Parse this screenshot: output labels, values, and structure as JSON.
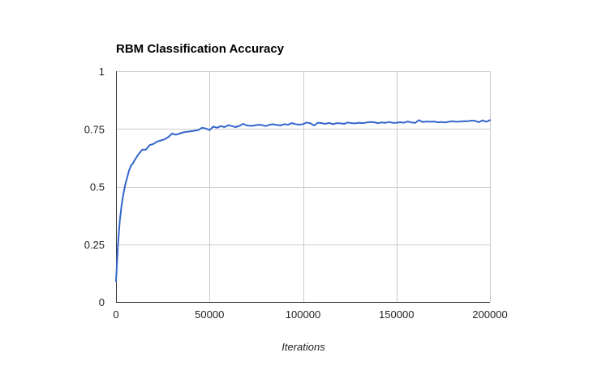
{
  "chart_data": {
    "type": "line",
    "title": "RBM Classification Accuracy",
    "xlabel": "Iterations",
    "ylabel": "",
    "xlim": [
      0,
      200000
    ],
    "ylim": [
      0,
      1
    ],
    "x_ticks": [
      0,
      50000,
      100000,
      150000,
      200000
    ],
    "y_ticks": [
      0,
      0.25,
      0.5,
      0.75,
      1
    ],
    "x_tick_labels": [
      "0",
      "50000",
      "100000",
      "150000",
      "200000"
    ],
    "y_tick_labels": [
      "0",
      "0.25",
      "0.5",
      "0.75",
      "1"
    ],
    "grid": true,
    "legend": "none",
    "series": [
      {
        "color": "#3366cc",
        "x": [
          0,
          1000,
          2000,
          3000,
          4000,
          5000,
          6000,
          7000,
          8000,
          9000,
          10000,
          12000,
          14000,
          16000,
          18000,
          20000,
          22000,
          24000,
          26000,
          28000,
          30000,
          32000,
          34000,
          36000,
          38000,
          40000,
          42000,
          44000,
          46000,
          48000,
          50000,
          52000,
          54000,
          56000,
          58000,
          60000,
          62000,
          64000,
          66000,
          68000,
          70000,
          72000,
          74000,
          76000,
          78000,
          80000,
          82000,
          84000,
          86000,
          88000,
          90000,
          92000,
          94000,
          96000,
          98000,
          100000,
          102000,
          104000,
          106000,
          108000,
          110000,
          112000,
          114000,
          116000,
          118000,
          120000,
          122000,
          124000,
          126000,
          128000,
          130000,
          132000,
          134000,
          136000,
          138000,
          140000,
          142000,
          144000,
          146000,
          148000,
          150000,
          152000,
          154000,
          156000,
          158000,
          160000,
          162000,
          164000,
          166000,
          168000,
          170000,
          172000,
          174000,
          176000,
          178000,
          180000,
          182000,
          184000,
          186000,
          188000,
          190000,
          192000,
          194000,
          196000,
          198000,
          200000
        ],
        "values": [
          0.09,
          0.24,
          0.35,
          0.42,
          0.47,
          0.51,
          0.54,
          0.57,
          0.59,
          0.6,
          0.615,
          0.64,
          0.66,
          0.66,
          0.68,
          0.685,
          0.695,
          0.7,
          0.705,
          0.715,
          0.73,
          0.725,
          0.73,
          0.735,
          0.738,
          0.74,
          0.742,
          0.745,
          0.755,
          0.752,
          0.745,
          0.76,
          0.755,
          0.762,
          0.758,
          0.766,
          0.762,
          0.758,
          0.763,
          0.772,
          0.765,
          0.763,
          0.765,
          0.768,
          0.767,
          0.762,
          0.768,
          0.77,
          0.767,
          0.765,
          0.771,
          0.768,
          0.775,
          0.771,
          0.768,
          0.771,
          0.778,
          0.774,
          0.765,
          0.777,
          0.775,
          0.772,
          0.776,
          0.77,
          0.775,
          0.774,
          0.772,
          0.778,
          0.775,
          0.774,
          0.777,
          0.775,
          0.778,
          0.78,
          0.779,
          0.775,
          0.778,
          0.776,
          0.78,
          0.776,
          0.777,
          0.779,
          0.777,
          0.782,
          0.778,
          0.776,
          0.788,
          0.78,
          0.782,
          0.781,
          0.782,
          0.779,
          0.78,
          0.778,
          0.781,
          0.783,
          0.781,
          0.782,
          0.784,
          0.783,
          0.786,
          0.785,
          0.779,
          0.787,
          0.781,
          0.788
        ]
      }
    ]
  }
}
